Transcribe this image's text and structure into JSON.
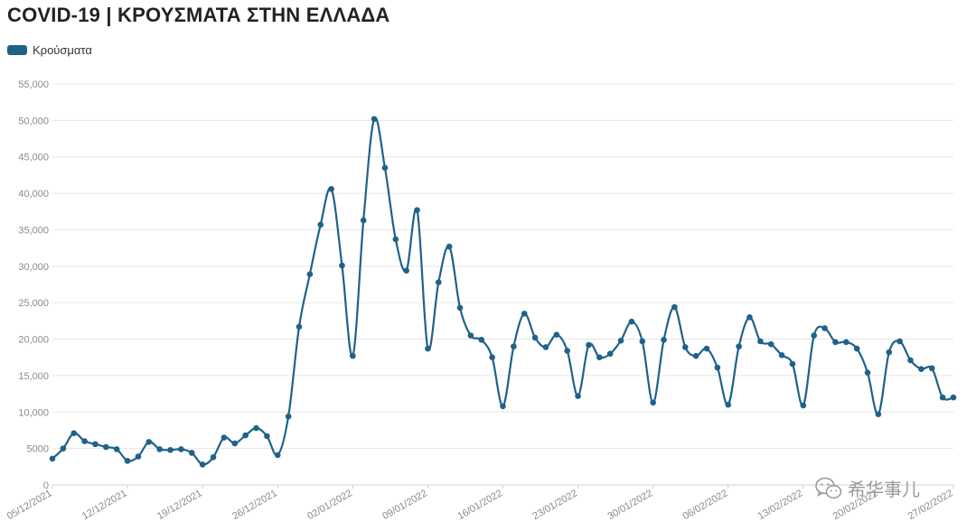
{
  "page": {
    "title": "COVID-19 | ΚΡΟΥΣΜΑΤΑ ΣΤΗΝ ΕΛΛΑΔΑ",
    "watermark_text": "希华事儿"
  },
  "colors": {
    "series": "#1f6289",
    "grid": "#e6e6e6",
    "axis_text": "#8a8a8a"
  },
  "chart_data": {
    "type": "line",
    "title": "COVID-19 | ΚΡΟΥΣΜΑΤΑ ΣΤΗΝ ΕΛΛΑΔΑ",
    "xlabel": "",
    "ylabel": "",
    "ylim": [
      0,
      55000
    ],
    "yticks": [
      0,
      5000,
      10000,
      15000,
      20000,
      25000,
      30000,
      35000,
      40000,
      45000,
      50000,
      55000
    ],
    "ytick_labels": [
      "0",
      "5000",
      "10,000",
      "15,000",
      "20,000",
      "25,000",
      "30,000",
      "35,000",
      "40,000",
      "45,000",
      "50,000",
      "55,000"
    ],
    "xtick_labels": [
      "05/12/2021",
      "12/12/2021",
      "19/12/2021",
      "26/12/2021",
      "02/01/2022",
      "09/01/2022",
      "16/01/2022",
      "23/01/2022",
      "30/01/2022",
      "06/02/2022",
      "13/02/2022",
      "20/02/2022",
      "27/02/2022"
    ],
    "grid": true,
    "legend_position": "top-left",
    "series": [
      {
        "name": "Κρούσματα",
        "dates": [
          "05/12/2021",
          "06/12/2021",
          "07/12/2021",
          "08/12/2021",
          "09/12/2021",
          "10/12/2021",
          "11/12/2021",
          "12/12/2021",
          "13/12/2021",
          "14/12/2021",
          "15/12/2021",
          "16/12/2021",
          "17/12/2021",
          "18/12/2021",
          "19/12/2021",
          "20/12/2021",
          "21/12/2021",
          "22/12/2021",
          "23/12/2021",
          "24/12/2021",
          "25/12/2021",
          "26/12/2021",
          "27/12/2021",
          "28/12/2021",
          "29/12/2021",
          "30/12/2021",
          "31/12/2021",
          "01/01/2022",
          "02/01/2022",
          "03/01/2022",
          "04/01/2022",
          "05/01/2022",
          "06/01/2022",
          "07/01/2022",
          "08/01/2022",
          "09/01/2022",
          "10/01/2022",
          "11/01/2022",
          "12/01/2022",
          "13/01/2022",
          "14/01/2022",
          "15/01/2022",
          "16/01/2022",
          "17/01/2022",
          "18/01/2022",
          "19/01/2022",
          "20/01/2022",
          "21/01/2022",
          "22/01/2022",
          "23/01/2022",
          "24/01/2022",
          "25/01/2022",
          "26/01/2022",
          "27/01/2022",
          "28/01/2022",
          "29/01/2022",
          "30/01/2022",
          "31/01/2022",
          "01/02/2022",
          "02/02/2022",
          "03/02/2022",
          "04/02/2022",
          "05/02/2022",
          "06/02/2022",
          "07/02/2022",
          "08/02/2022",
          "09/02/2022",
          "10/02/2022",
          "11/02/2022",
          "12/02/2022",
          "13/02/2022",
          "14/02/2022",
          "15/02/2022",
          "16/02/2022",
          "17/02/2022",
          "18/02/2022",
          "19/02/2022",
          "20/02/2022",
          "21/02/2022",
          "22/02/2022",
          "23/02/2022",
          "24/02/2022",
          "25/02/2022",
          "26/02/2022",
          "27/02/2022"
        ],
        "values": [
          3600,
          5000,
          7100,
          6000,
          5600,
          5200,
          4900,
          3300,
          3900,
          5900,
          4900,
          4800,
          4900,
          4400,
          2800,
          3800,
          6500,
          5700,
          6800,
          7800,
          6700,
          4100,
          9400,
          21700,
          28900,
          35700,
          40600,
          30100,
          17700,
          36300,
          50200,
          43500,
          33700,
          29400,
          37700,
          18700,
          27800,
          32700,
          24300,
          20500,
          19900,
          17500,
          10800,
          19000,
          23500,
          20200,
          18900,
          20600,
          18400,
          12200,
          19200,
          17500,
          18000,
          19800,
          22400,
          19700,
          11300,
          19900,
          24400,
          18900,
          17700,
          18700,
          16100,
          11000,
          19000,
          23000,
          19700,
          19300,
          17800,
          16600,
          10900,
          20500,
          21500,
          19600,
          19600,
          18700,
          15400,
          9700,
          18200,
          19700,
          17100,
          15900,
          16000,
          12000,
          12000
        ]
      }
    ]
  }
}
